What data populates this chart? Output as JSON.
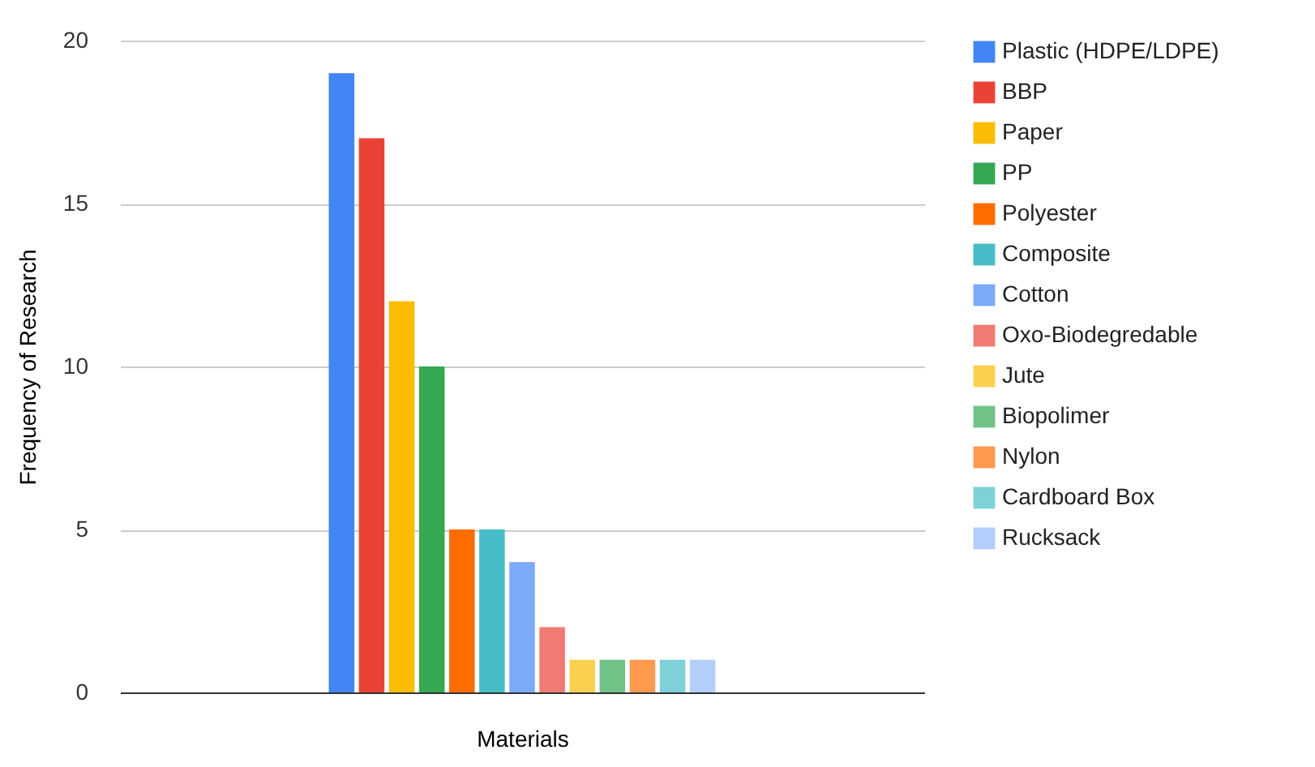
{
  "chart_data": {
    "type": "bar",
    "xlabel": "Materials",
    "ylabel": "Frequency of Research",
    "categories": [
      null
    ],
    "series": [
      {
        "name": "Plastic (HDPE/LDPE)",
        "color": "#4285f4",
        "values": [
          19
        ]
      },
      {
        "name": "BBP",
        "color": "#ea4335",
        "values": [
          17
        ]
      },
      {
        "name": "Paper",
        "color": "#fbbc04",
        "values": [
          12
        ]
      },
      {
        "name": "PP",
        "color": "#34a853",
        "values": [
          10
        ]
      },
      {
        "name": "Polyester",
        "color": "#ff6d01",
        "values": [
          5
        ]
      },
      {
        "name": "Composite",
        "color": "#46bdc6",
        "values": [
          5
        ]
      },
      {
        "name": "Cotton",
        "color": "#7baaf7",
        "values": [
          4
        ]
      },
      {
        "name": "Oxo-Biodegredable",
        "color": "#f07b72",
        "values": [
          2
        ]
      },
      {
        "name": "Jute",
        "color": "#fcd04f",
        "values": [
          1
        ]
      },
      {
        "name": "Biopolimer",
        "color": "#71c287",
        "values": [
          1
        ]
      },
      {
        "name": "Nylon",
        "color": "#ff994d",
        "values": [
          1
        ]
      },
      {
        "name": "Cardboard Box",
        "color": "#7ed1d7",
        "values": [
          1
        ]
      },
      {
        "name": "Rucksack",
        "color": "#b3cefb",
        "values": [
          1
        ]
      }
    ],
    "ylim": [
      0,
      20
    ],
    "yticks": [
      0,
      5,
      10,
      15,
      20
    ],
    "grid": "y",
    "legend": "right"
  }
}
